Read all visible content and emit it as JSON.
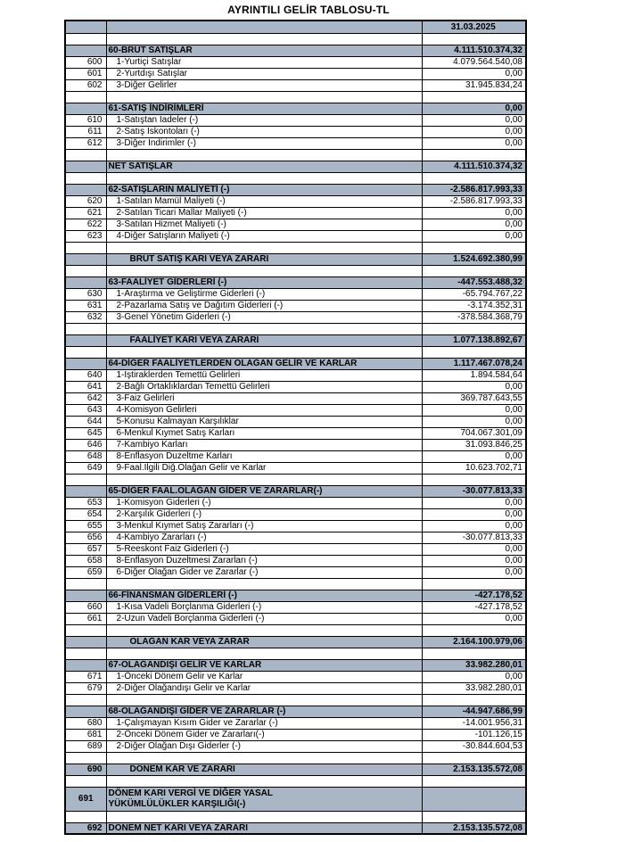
{
  "title": "AYRINTILI GELİR TABLOSU-TL",
  "report_date": "31.03.2025",
  "colors": {
    "section_fill": "#a9b6c5",
    "border": "#000000",
    "text": "#000000"
  },
  "rows": [
    {
      "t": "h",
      "code": "",
      "desc": "",
      "val": "31.03.2025"
    },
    {
      "t": "b",
      "code": "",
      "desc": "",
      "val": ""
    },
    {
      "t": "s",
      "code": "",
      "desc": "60-BRÜT SATIŞLAR",
      "val": "4.111.510.374,32"
    },
    {
      "t": "d",
      "code": "600",
      "desc": "1-Yurtiçi Satışlar",
      "val": "4.079.564.540,08"
    },
    {
      "t": "d",
      "code": "601",
      "desc": "2-Yurtdışı Satışlar",
      "val": "0,00"
    },
    {
      "t": "d",
      "code": "602",
      "desc": "3-Diğer Gelirler",
      "val": "31.945.834,24"
    },
    {
      "t": "b",
      "code": "",
      "desc": "",
      "val": ""
    },
    {
      "t": "s",
      "code": "",
      "desc": "61-SATIŞ İNDİRİMLERİ",
      "val": "0,00"
    },
    {
      "t": "d",
      "code": "610",
      "desc": "1-Satıştan İadeler (-)",
      "val": "0,00"
    },
    {
      "t": "d",
      "code": "611",
      "desc": "2-Satış İskontoları (-)",
      "val": "0,00"
    },
    {
      "t": "d",
      "code": "612",
      "desc": "3-Diğer İndirimler (-)",
      "val": "0,00"
    },
    {
      "t": "b",
      "code": "",
      "desc": "",
      "val": ""
    },
    {
      "t": "s",
      "code": "",
      "desc": "NET SATIŞLAR",
      "val": "4.111.510.374,32"
    },
    {
      "t": "b",
      "code": "",
      "desc": "",
      "val": ""
    },
    {
      "t": "s",
      "code": "",
      "desc": "62-SATIŞLARIN MALİYETİ (-)",
      "val": "-2.586.817.993,33"
    },
    {
      "t": "d",
      "code": "620",
      "desc": "1-Satılan Mamül Maliyeti (-)",
      "val": "-2.586.817.993,33"
    },
    {
      "t": "d",
      "code": "621",
      "desc": "2-Satılan Ticari Mallar Maliyeti (-)",
      "val": "0,00"
    },
    {
      "t": "d",
      "code": "622",
      "desc": "3-Satılan Hizmet Maliyeti (-)",
      "val": "0,00"
    },
    {
      "t": "d",
      "code": "623",
      "desc": "4-Diğer Satışların Maliyeti (-)",
      "val": "0,00"
    },
    {
      "t": "b",
      "code": "",
      "desc": "",
      "val": ""
    },
    {
      "t": "s",
      "ind": 1,
      "code": "",
      "desc": "BRÜT SATIŞ KARI VEYA ZARARI",
      "val": "1.524.692.380,99"
    },
    {
      "t": "b",
      "code": "",
      "desc": "",
      "val": ""
    },
    {
      "t": "s",
      "code": "",
      "desc": "63-FAALİYET GİDERLERİ (-)",
      "val": "-447.553.488,32"
    },
    {
      "t": "d",
      "code": "630",
      "desc": "1-Araştırma ve Geliştirme Giderleri (-)",
      "val": "-65.794.767,22"
    },
    {
      "t": "d",
      "code": "631",
      "desc": "2-Pazarlama Satış ve Dağıtım Giderleri (-)",
      "val": "-3.174.352,31"
    },
    {
      "t": "d",
      "code": "632",
      "desc": "3-Genel Yönetim Giderleri (-)",
      "val": "-378.584.368,79"
    },
    {
      "t": "b",
      "code": "",
      "desc": "",
      "val": ""
    },
    {
      "t": "s",
      "ind": 1,
      "code": "",
      "desc": "FAALİYET KARI VEYA ZARARI",
      "val": "1.077.138.892,67"
    },
    {
      "t": "b",
      "code": "",
      "desc": "",
      "val": ""
    },
    {
      "t": "s",
      "code": "",
      "desc": "64-DİĞER FAALİYETLERDEN OLAĞAN GELİR VE KARLAR",
      "val": "1.117.467.078,24"
    },
    {
      "t": "d",
      "code": "640",
      "desc": "1-İştiraklerden Temettü Gelirleri",
      "val": "1.894.584,64"
    },
    {
      "t": "d",
      "code": "641",
      "desc": "2-Bağlı Ortaklıklardan Temettü Gelirleri",
      "val": "0,00"
    },
    {
      "t": "d",
      "code": "642",
      "desc": "3-Faiz Gelirleri",
      "val": "369.787.643,55"
    },
    {
      "t": "d",
      "code": "643",
      "desc": "4-Komisyon Gelirleri",
      "val": "0,00"
    },
    {
      "t": "d",
      "code": "644",
      "desc": "5-Konusu Kalmayan Karşılıklar",
      "val": "0,00"
    },
    {
      "t": "d",
      "code": "645",
      "desc": "6-Menkul Kıymet Satış Karları",
      "val": "704.067.301,09"
    },
    {
      "t": "d",
      "code": "646",
      "desc": "7-Kambiyo Karları",
      "val": "31.093.846,25"
    },
    {
      "t": "d",
      "code": "648",
      "desc": "8-Enflasyon Duzeltme Karları",
      "val": "0,00"
    },
    {
      "t": "d",
      "code": "649",
      "desc": "9-Faal.Ilgili Diğ.Olağan Gelir ve Karlar",
      "val": "10.623.702,71"
    },
    {
      "t": "b",
      "code": "",
      "desc": "",
      "val": ""
    },
    {
      "t": "s",
      "code": "",
      "desc": "65-DİĞER FAAL.OLAĞAN GİDER VE ZARARLAR(-)",
      "val": "-30.077.813,33"
    },
    {
      "t": "d",
      "code": "653",
      "desc": "1-Komisyon Giderleri (-)",
      "val": "0,00"
    },
    {
      "t": "d",
      "code": "654",
      "desc": "2-Karşılık Giderleri (-)",
      "val": "0,00"
    },
    {
      "t": "d",
      "code": "655",
      "desc": "3-Menkul Kıymet Satış Zararları (-)",
      "val": "0,00"
    },
    {
      "t": "d",
      "code": "656",
      "desc": "4-Kambiyo Zararları (-)",
      "val": "-30.077.813,33"
    },
    {
      "t": "d",
      "code": "657",
      "desc": "5-Reeskont Faiz Giderleri (-)",
      "val": "0,00"
    },
    {
      "t": "d",
      "code": "658",
      "desc": "8-Enflasyon Duzeltmesi Zararları (-)",
      "val": "0,00"
    },
    {
      "t": "d",
      "code": "659",
      "desc": "6-Diğer Olağan Gider ve Zararlar (-)",
      "val": "0,00"
    },
    {
      "t": "b",
      "code": "",
      "desc": "",
      "val": ""
    },
    {
      "t": "s",
      "code": "",
      "desc": "66-FİNANSMAN GİDERLERİ (-)",
      "val": "-427.178,52"
    },
    {
      "t": "d",
      "code": "660",
      "desc": "1-Kısa Vadeli Borçlanma Giderleri (-)",
      "val": "-427.178,52"
    },
    {
      "t": "d",
      "code": "661",
      "desc": "2-Uzun Vadeli Borçlanma Giderleri (-)",
      "val": "0,00"
    },
    {
      "t": "b",
      "code": "",
      "desc": "",
      "val": ""
    },
    {
      "t": "s",
      "ind": 1,
      "code": "",
      "desc": "OLAĞAN KAR VEYA ZARAR",
      "val": "2.164.100.979,06"
    },
    {
      "t": "b",
      "code": "",
      "desc": "",
      "val": ""
    },
    {
      "t": "s",
      "code": "",
      "desc": "67-OLAĞANDIŞI GELİR VE KARLAR",
      "val": "33.982.280,01"
    },
    {
      "t": "d",
      "code": "671",
      "desc": "1-Önceki Dönem Gelir ve Karlar",
      "val": "0,00"
    },
    {
      "t": "d",
      "code": "679",
      "desc": "2-Diğer Olağandışı Gelir ve Karlar",
      "val": "33.982.280,01"
    },
    {
      "t": "b",
      "code": "",
      "desc": "",
      "val": ""
    },
    {
      "t": "s",
      "code": "",
      "desc": "68-OLAĞANDIŞI GİDER VE ZARARLAR (-)",
      "val": "-44.947.686,99"
    },
    {
      "t": "d",
      "code": "680",
      "desc": "1-Çalışmayan Kısım Gider ve Zararlar (-)",
      "val": "-14.001.956,31"
    },
    {
      "t": "d",
      "code": "681",
      "desc": "2-Önceki Dönem Gider ve Zararları(-)",
      "val": "-101.126,15"
    },
    {
      "t": "d",
      "code": "689",
      "desc": "2-Diğer Olağan Dışı Giderler (-)",
      "val": "-30.844.604,53"
    },
    {
      "t": "b",
      "code": "",
      "desc": "",
      "val": ""
    },
    {
      "t": "s",
      "ind": 1,
      "code": "690",
      "desc": "DÖNEM KAR VE ZARARI",
      "val": "2.153.135.572,08"
    },
    {
      "t": "b",
      "code": "",
      "desc": "",
      "val": ""
    },
    {
      "t": "s",
      "tall": 1,
      "code": "691",
      "desc": "DÖNEM KARI VERGİ VE DİĞER YASAL\nYÜKÜMLÜLÜKLER KARŞILIĞI(-)",
      "val": ""
    },
    {
      "t": "b",
      "code": "",
      "desc": "",
      "val": ""
    },
    {
      "t": "s",
      "code": "692",
      "desc": "DÖNEM NET KARI VEYA ZARARI",
      "val": "2.153.135.572,08"
    }
  ]
}
